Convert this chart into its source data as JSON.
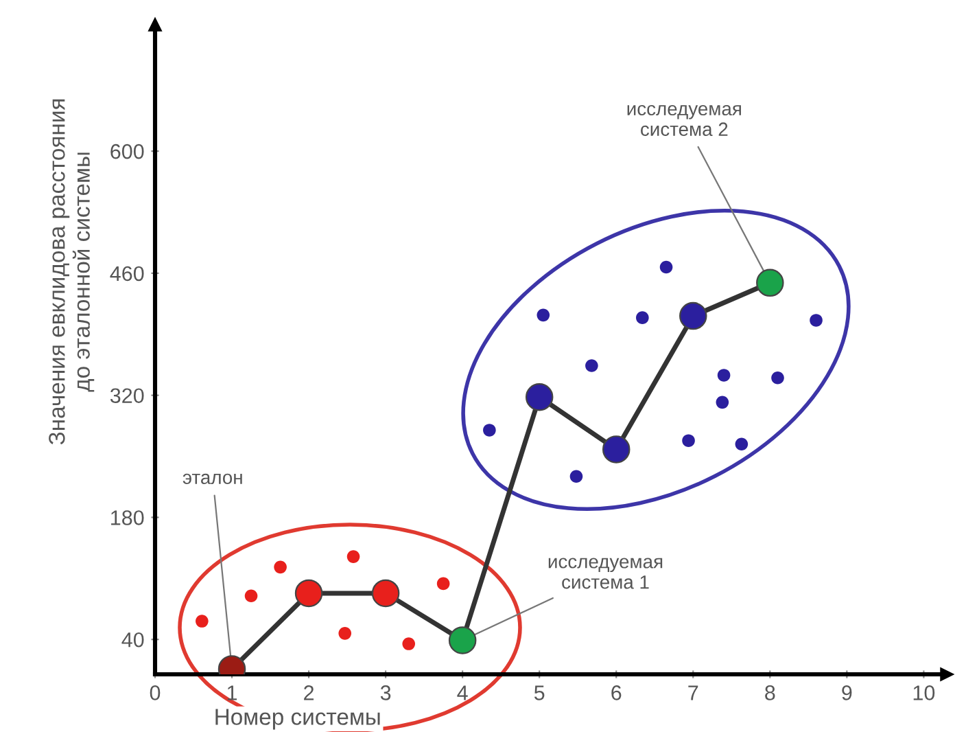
{
  "chart_data": {
    "type": "scatter",
    "xlabel": "Номер системы",
    "ylabel": "Значения евклидова расстояния\nдо эталонной системы",
    "xlim": [
      0,
      10.3
    ],
    "ylim": [
      0,
      745
    ],
    "xticks": [
      0,
      1,
      2,
      3,
      4,
      5,
      6,
      7,
      8,
      9,
      10
    ],
    "yticks": [
      40,
      180,
      320,
      460,
      600
    ],
    "grid": false,
    "series": [
      {
        "color": "#e8201c",
        "marker": "circle",
        "x": [
          0.61,
          1.25,
          1.63,
          2.58,
          2.47,
          3.3,
          3.75
        ],
        "values": [
          61,
          90,
          123,
          135,
          47,
          35,
          104
        ]
      },
      {
        "color": "#2b1f9e",
        "marker": "circle",
        "x": [
          6.65,
          5.05,
          6.34,
          8.6,
          5.68,
          7.4,
          8.1,
          7.38,
          4.35,
          6.94,
          7.63,
          5.48
        ],
        "values": [
          467,
          412,
          409,
          406,
          354,
          343,
          340,
          312,
          280,
          268,
          264,
          227
        ]
      },
      {
        "type": "line",
        "color": "#333333",
        "marker": "circle",
        "line_style": "solid",
        "x": [
          1,
          2,
          3,
          4,
          5,
          6,
          7,
          8
        ],
        "values": [
          6,
          93,
          93,
          39,
          318,
          258,
          411,
          449
        ],
        "colors": [
          "#9b1c14",
          "#e8201c",
          "#e8201c",
          "#1aa34a",
          "#2b1f9e",
          "#2b1f9e",
          "#2b1f9e",
          "#1aa34a"
        ]
      }
    ],
    "annotations": [
      {
        "text": "эталон",
        "x": 1,
        "y": 6
      },
      {
        "text": "исследуемая\nсистема 1",
        "x": 4,
        "y": 39
      },
      {
        "text": "исследуемая\nсистема 2",
        "x": 8,
        "y": 449
      }
    ]
  }
}
